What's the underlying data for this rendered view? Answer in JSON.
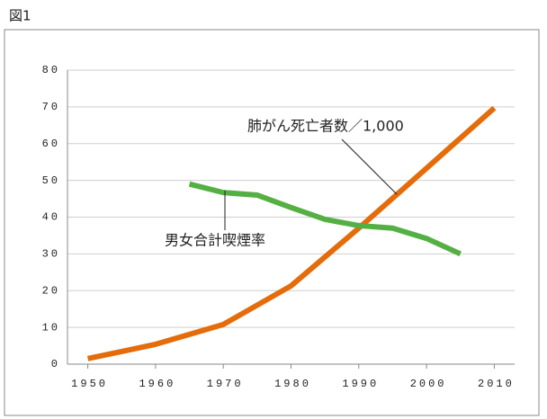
{
  "header": "図1",
  "chart_data": {
    "type": "line",
    "xlim": [
      1947,
      2013
    ],
    "xticks": [
      1950,
      1960,
      1970,
      1980,
      1990,
      2000,
      2010
    ],
    "ylim": [
      0,
      80
    ],
    "yticks": [
      0,
      10,
      20,
      30,
      40,
      50,
      60,
      70,
      80
    ],
    "grid": true,
    "series": [
      {
        "name": "肺がん死亡者数／1,000",
        "color": "#e46c0a",
        "x": [
          1950,
          1960,
          1970,
          1980,
          1990,
          2000,
          2010
        ],
        "values": [
          1.5,
          5.4,
          10.8,
          21.3,
          37,
          53.3,
          69.7
        ]
      },
      {
        "name": "男女合計喫煙率",
        "color": "#55b043",
        "x": [
          1965,
          1970,
          1975,
          1980,
          1985,
          1990,
          1995,
          2000,
          2005
        ],
        "values": [
          49,
          46.7,
          46,
          42.6,
          39.4,
          37.7,
          37,
          34.2,
          30
        ]
      }
    ]
  }
}
